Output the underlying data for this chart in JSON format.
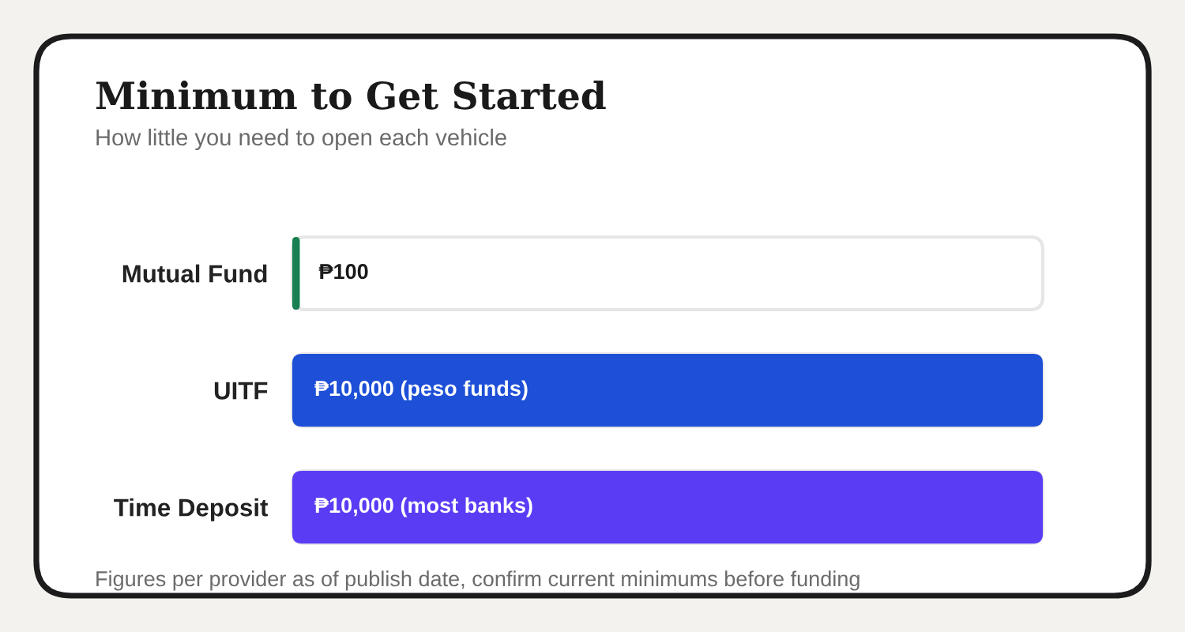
{
  "chart_data": {
    "type": "bar",
    "orientation": "horizontal",
    "title": "Minimum to Get Started",
    "subtitle": "How little you need to open each vehicle",
    "categories": [
      "Mutual Fund",
      "UITF",
      "Time Deposit"
    ],
    "values": [
      100,
      10000,
      10000
    ],
    "colors": [
      "#1a7f53",
      "#1d4fd7",
      "#5b3cf5"
    ],
    "value_labels": [
      "₱100",
      "₱10,000 (peso funds)",
      "₱10,000 (most banks)"
    ],
    "xlim": [
      0,
      10000
    ],
    "tick_labels": "y",
    "annotations": [
      "Figures per provider as of publish date, confirm current minimums before funding"
    ]
  }
}
